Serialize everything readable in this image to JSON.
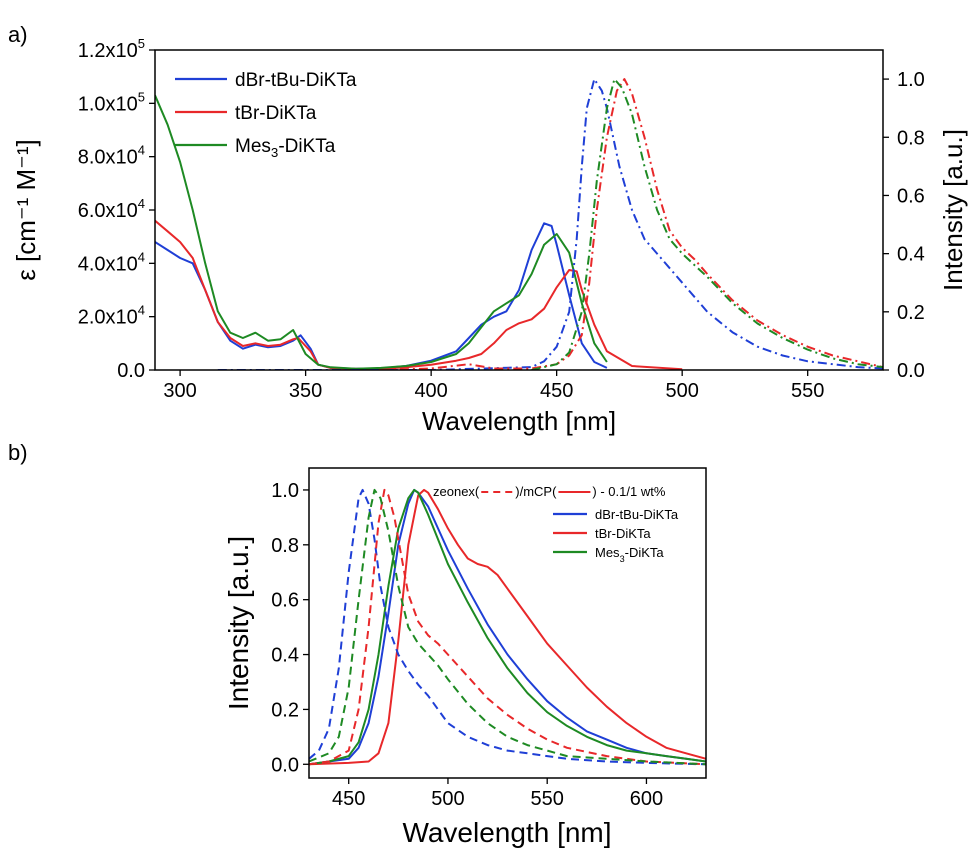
{
  "panels": {
    "a": {
      "label": "a)"
    },
    "b": {
      "label": "b)"
    }
  },
  "chart_data": [
    {
      "panel": "a",
      "type": "line",
      "xlabel": "Wavelength [nm]",
      "ylabel": "ε [cm⁻¹ M⁻¹]",
      "ylabel_right": "Intensity [a.u.]",
      "xlim": [
        290,
        580
      ],
      "ylim": [
        0,
        120000
      ],
      "ylim_right": [
        0,
        1.1
      ],
      "xticks": [
        300,
        350,
        400,
        450,
        500,
        550
      ],
      "yticks": [
        {
          "value": 0,
          "label": "0.0"
        },
        {
          "value": 20000,
          "label": "2.0x10",
          "exp": "4"
        },
        {
          "value": 40000,
          "label": "4.0x10",
          "exp": "4"
        },
        {
          "value": 60000,
          "label": "6.0x10",
          "exp": "4"
        },
        {
          "value": 80000,
          "label": "8.0x10",
          "exp": "4"
        },
        {
          "value": 100000,
          "label": "1.0x10",
          "exp": "5"
        },
        {
          "value": 120000,
          "label": "1.2x10",
          "exp": "5"
        }
      ],
      "yticks_right": [
        {
          "value": 0,
          "label": "0.0"
        },
        {
          "value": 0.2,
          "label": "0.2"
        },
        {
          "value": 0.4,
          "label": "0.4"
        },
        {
          "value": 0.6,
          "label": "0.6"
        },
        {
          "value": 0.8,
          "label": "0.8"
        },
        {
          "value": 1.0,
          "label": "1.0"
        }
      ],
      "legend_position": "top-left",
      "legend": [
        {
          "name": "dBr-tBu-DiKTa",
          "color": "#1f3fd6"
        },
        {
          "name": "tBr-DiKTa",
          "color": "#e8282a"
        },
        {
          "name": "Mes",
          "sub": "3",
          "suffix": "-DiKTa",
          "color": "#1e8a23"
        }
      ],
      "series": [
        {
          "name": "dBr-tBu-DiKTa",
          "kind": "absorption",
          "axis": "left",
          "style": "solid",
          "color": "#1f3fd6",
          "x": [
            290,
            295,
            300,
            305,
            310,
            315,
            320,
            325,
            330,
            335,
            340,
            345,
            348,
            352,
            355,
            360,
            370,
            380,
            390,
            400,
            410,
            415,
            420,
            425,
            430,
            435,
            440,
            445,
            448,
            450,
            455,
            460,
            465,
            470
          ],
          "y": [
            48000,
            45000,
            42000,
            40000,
            30000,
            18000,
            11000,
            8000,
            9500,
            8500,
            9000,
            11000,
            13000,
            8000,
            2000,
            800,
            500,
            600,
            1500,
            3500,
            7000,
            12000,
            17000,
            20000,
            22000,
            30000,
            45000,
            55000,
            54000,
            47000,
            28000,
            10000,
            3000,
            800
          ]
        },
        {
          "name": "tBr-DiKTa",
          "kind": "absorption",
          "axis": "left",
          "style": "solid",
          "color": "#e8282a",
          "x": [
            290,
            295,
            300,
            305,
            310,
            315,
            320,
            325,
            330,
            335,
            340,
            345,
            347,
            352,
            355,
            360,
            370,
            380,
            390,
            400,
            410,
            415,
            420,
            425,
            430,
            435,
            440,
            445,
            450,
            455,
            458,
            460,
            465,
            470,
            480,
            500
          ],
          "y": [
            56000,
            52000,
            48000,
            42000,
            30000,
            18000,
            12000,
            9000,
            10000,
            9000,
            9500,
            11500,
            12000,
            7000,
            2000,
            800,
            400,
            500,
            1000,
            2000,
            3500,
            4500,
            6000,
            10000,
            15000,
            17500,
            19000,
            23000,
            31000,
            37500,
            37000,
            30000,
            17000,
            7000,
            1500,
            300
          ]
        },
        {
          "name": "Mes3-DiKTa",
          "kind": "absorption",
          "axis": "left",
          "style": "solid",
          "color": "#1e8a23",
          "x": [
            290,
            295,
            300,
            305,
            310,
            315,
            320,
            325,
            330,
            335,
            340,
            345,
            350,
            355,
            360,
            370,
            380,
            390,
            400,
            410,
            415,
            420,
            425,
            430,
            435,
            440,
            445,
            450,
            455,
            460,
            465,
            470
          ],
          "y": [
            103000,
            92000,
            78000,
            60000,
            40000,
            22000,
            14000,
            12000,
            14000,
            11000,
            11500,
            15000,
            6000,
            2000,
            1000,
            500,
            800,
            1500,
            3000,
            6000,
            10000,
            16000,
            22000,
            25000,
            28000,
            36000,
            47000,
            51000,
            44000,
            25000,
            10000,
            3000
          ]
        },
        {
          "name": "dBr-tBu-DiKTa",
          "kind": "emission",
          "axis": "right",
          "style": "dashdot",
          "color": "#1f3fd6",
          "x": [
            315,
            350,
            400,
            440,
            445,
            450,
            455,
            458,
            460,
            462,
            465,
            468,
            470,
            475,
            480,
            485,
            490,
            500,
            510,
            520,
            530,
            540,
            550,
            560,
            570,
            580
          ],
          "y": [
            0,
            0,
            0,
            0.01,
            0.03,
            0.08,
            0.2,
            0.45,
            0.7,
            0.9,
            1.0,
            0.96,
            0.9,
            0.7,
            0.55,
            0.45,
            0.4,
            0.3,
            0.2,
            0.13,
            0.08,
            0.05,
            0.03,
            0.02,
            0.01,
            0.005
          ]
        },
        {
          "name": "tBr-DiKTa",
          "kind": "emission",
          "axis": "right",
          "style": "dashdot",
          "color": "#e8282a",
          "x": [
            380,
            400,
            415,
            425,
            440,
            450,
            455,
            460,
            463,
            466,
            470,
            474,
            477,
            480,
            485,
            490,
            495,
            500,
            505,
            510,
            520,
            530,
            540,
            550,
            560,
            570,
            580
          ],
          "y": [
            0,
            0.005,
            0.02,
            0.005,
            0.005,
            0.02,
            0.05,
            0.12,
            0.3,
            0.55,
            0.8,
            0.96,
            1.0,
            0.95,
            0.8,
            0.62,
            0.48,
            0.42,
            0.38,
            0.33,
            0.24,
            0.17,
            0.12,
            0.08,
            0.05,
            0.03,
            0.01
          ]
        },
        {
          "name": "Mes3-DiKTa",
          "kind": "emission",
          "axis": "right",
          "style": "dashdot",
          "color": "#1e8a23",
          "x": [
            440,
            450,
            455,
            460,
            463,
            466,
            470,
            473,
            476,
            480,
            485,
            490,
            495,
            500,
            505,
            510,
            520,
            530,
            540,
            550,
            560,
            570,
            580
          ],
          "y": [
            0,
            0.02,
            0.06,
            0.2,
            0.4,
            0.65,
            0.9,
            1.0,
            0.97,
            0.88,
            0.7,
            0.55,
            0.45,
            0.4,
            0.36,
            0.32,
            0.23,
            0.16,
            0.11,
            0.07,
            0.04,
            0.02,
            0.01
          ]
        }
      ]
    },
    {
      "panel": "b",
      "type": "line",
      "xlabel": "Wavelength [nm]",
      "ylabel": "Intensity [a.u.]",
      "xlim": [
        430,
        630
      ],
      "ylim": [
        -0.05,
        1.08
      ],
      "xticks": [
        450,
        500,
        550,
        600
      ],
      "yticks": [
        {
          "value": 0,
          "label": "0.0"
        },
        {
          "value": 0.2,
          "label": "0.2"
        },
        {
          "value": 0.4,
          "label": "0.4"
        },
        {
          "value": 0.6,
          "label": "0.6"
        },
        {
          "value": 0.8,
          "label": "0.8"
        },
        {
          "value": 1.0,
          "label": "1.0"
        }
      ],
      "legend_position": "top-right",
      "legend_header": {
        "part1": "zeonex(",
        "part2": ")/mCP(",
        "part3": ") - 0.1/1 wt%"
      },
      "legend": [
        {
          "name": "dBr-tBu-DiKTa",
          "color": "#1f3fd6"
        },
        {
          "name": "tBr-DiKTa",
          "color": "#e8282a"
        },
        {
          "name": "Mes",
          "sub": "3",
          "suffix": "-DiKTa",
          "color": "#1e8a23"
        }
      ],
      "series": [
        {
          "name": "dBr-tBu-DiKTa",
          "host": "mCP",
          "style": "solid",
          "color": "#1f3fd6",
          "x": [
            430,
            440,
            450,
            455,
            460,
            465,
            470,
            475,
            480,
            483,
            485,
            490,
            495,
            500,
            510,
            520,
            530,
            540,
            550,
            560,
            570,
            580,
            590,
            600,
            610,
            620,
            630
          ],
          "y": [
            0,
            0.01,
            0.02,
            0.06,
            0.15,
            0.32,
            0.55,
            0.8,
            0.95,
            1.0,
            0.99,
            0.94,
            0.86,
            0.78,
            0.64,
            0.51,
            0.4,
            0.31,
            0.23,
            0.17,
            0.12,
            0.09,
            0.06,
            0.04,
            0.03,
            0.02,
            0.01
          ]
        },
        {
          "name": "tBr-DiKTa",
          "host": "mCP",
          "style": "solid",
          "color": "#e8282a",
          "x": [
            430,
            450,
            460,
            465,
            470,
            475,
            480,
            485,
            488,
            490,
            495,
            500,
            505,
            510,
            515,
            520,
            525,
            530,
            540,
            550,
            560,
            570,
            580,
            590,
            600,
            610,
            620,
            630
          ],
          "y": [
            0,
            0.005,
            0.01,
            0.04,
            0.15,
            0.45,
            0.8,
            0.98,
            1.0,
            0.99,
            0.93,
            0.86,
            0.8,
            0.75,
            0.73,
            0.72,
            0.69,
            0.64,
            0.54,
            0.44,
            0.36,
            0.28,
            0.21,
            0.15,
            0.1,
            0.06,
            0.04,
            0.02
          ]
        },
        {
          "name": "Mes3-DiKTa",
          "host": "mCP",
          "style": "solid",
          "color": "#1e8a23",
          "x": [
            430,
            440,
            450,
            455,
            460,
            465,
            470,
            475,
            480,
            483,
            485,
            490,
            495,
            500,
            510,
            520,
            530,
            540,
            550,
            560,
            570,
            580,
            590,
            600,
            610,
            620,
            630
          ],
          "y": [
            0,
            0.01,
            0.03,
            0.08,
            0.2,
            0.4,
            0.65,
            0.86,
            0.97,
            1.0,
            0.99,
            0.91,
            0.82,
            0.73,
            0.59,
            0.46,
            0.35,
            0.26,
            0.19,
            0.14,
            0.1,
            0.07,
            0.05,
            0.04,
            0.03,
            0.02,
            0.01
          ]
        },
        {
          "name": "dBr-tBu-DiKTa",
          "host": "zeonex",
          "style": "dash",
          "color": "#1f3fd6",
          "x": [
            430,
            435,
            440,
            445,
            450,
            455,
            457,
            460,
            463,
            466,
            470,
            475,
            480,
            485,
            490,
            495,
            500,
            510,
            520,
            530,
            540,
            550,
            560,
            580,
            600,
            630
          ],
          "y": [
            0.02,
            0.05,
            0.13,
            0.35,
            0.7,
            0.97,
            1.0,
            0.95,
            0.82,
            0.65,
            0.5,
            0.4,
            0.34,
            0.29,
            0.25,
            0.2,
            0.15,
            0.1,
            0.07,
            0.05,
            0.04,
            0.03,
            0.02,
            0.01,
            0.005,
            0
          ]
        },
        {
          "name": "tBr-DiKTa",
          "host": "zeonex",
          "style": "dash",
          "color": "#e8282a",
          "x": [
            430,
            440,
            450,
            455,
            460,
            465,
            468,
            470,
            473,
            476,
            480,
            485,
            490,
            495,
            500,
            510,
            520,
            530,
            540,
            550,
            560,
            580,
            600,
            630
          ],
          "y": [
            0,
            0.01,
            0.05,
            0.2,
            0.5,
            0.88,
            1.0,
            0.98,
            0.9,
            0.78,
            0.62,
            0.52,
            0.47,
            0.44,
            0.4,
            0.32,
            0.24,
            0.18,
            0.13,
            0.09,
            0.06,
            0.03,
            0.01,
            0
          ]
        },
        {
          "name": "Mes3-DiKTa",
          "host": "zeonex",
          "style": "dash",
          "color": "#1e8a23",
          "x": [
            430,
            440,
            445,
            450,
            455,
            460,
            463,
            466,
            470,
            475,
            480,
            485,
            490,
            495,
            500,
            510,
            520,
            530,
            540,
            550,
            560,
            580,
            600,
            630
          ],
          "y": [
            0.01,
            0.04,
            0.1,
            0.28,
            0.6,
            0.9,
            1.0,
            0.97,
            0.85,
            0.65,
            0.5,
            0.44,
            0.4,
            0.36,
            0.31,
            0.22,
            0.15,
            0.1,
            0.07,
            0.05,
            0.03,
            0.02,
            0.01,
            0
          ]
        }
      ]
    }
  ]
}
